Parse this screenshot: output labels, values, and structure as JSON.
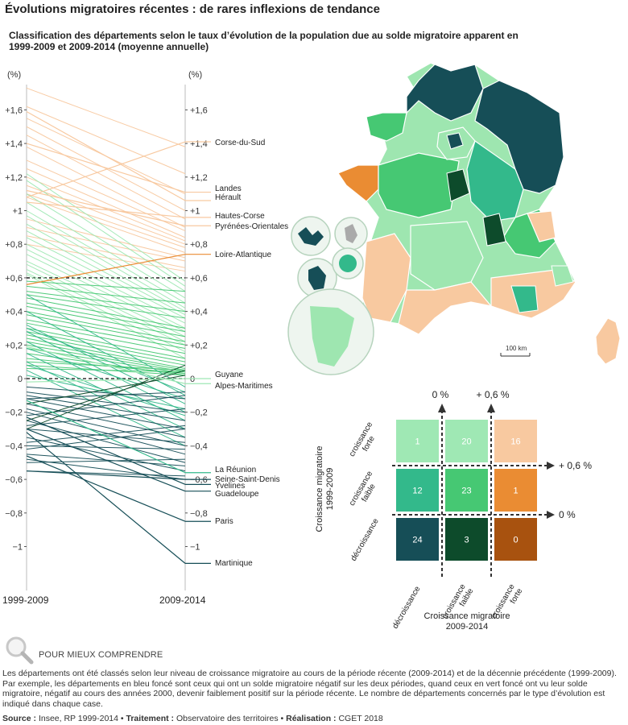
{
  "title": "Évolutions migratoires récentes : de rares inflexions de tendance",
  "subtitle": "Classification des départements selon le taux d’évolution de la population due au solde migratoire apparent en 1999-2009 et 2009-2014 (moyenne annuelle)",
  "colors": {
    "green_light": "#9fe8b4",
    "green_mid": "#46c873",
    "green_dark": "#0d4b2b",
    "blue_dark": "#164e57",
    "teal": "#33b98b",
    "orange_light": "#f8c9a0",
    "orange_mid": "#ea8c33",
    "orange_dark": "#a8520f",
    "threshold": "#333333"
  },
  "chart_data": [
    {
      "type": "slope",
      "unit_label": "(%)",
      "left_label": "1999-2009",
      "right_label": "2009-2014",
      "ylim": [
        -1.2,
        1.8
      ],
      "ticks": [
        {
          "v": 1.6,
          "label": "+1,6"
        },
        {
          "v": 1.4,
          "label": "+1,4"
        },
        {
          "v": 1.2,
          "label": "+1,2"
        },
        {
          "v": 1.0,
          "label": "+1"
        },
        {
          "v": 0.8,
          "label": "+0,8"
        },
        {
          "v": 0.6,
          "label": "+0,6"
        },
        {
          "v": 0.4,
          "label": "+0,4"
        },
        {
          "v": 0.2,
          "label": "+0,2"
        },
        {
          "v": 0.0,
          "label": "0"
        },
        {
          "v": -0.2,
          "label": "−0,2"
        },
        {
          "v": -0.4,
          "label": "−0,4"
        },
        {
          "v": -0.6,
          "label": "−0,6"
        },
        {
          "v": -0.8,
          "label": "−0,8"
        },
        {
          "v": -1.0,
          "label": "−1"
        }
      ],
      "right_tick_label_at_minus_06": "−0,6",
      "thresholds": [
        0.6,
        0.0
      ],
      "labeled": [
        {
          "name": "Corse-du-Sud",
          "y1999": 1.08,
          "y2009": 1.41
        },
        {
          "name": "Landes",
          "y1999": 1.4,
          "y2009": 1.11
        },
        {
          "name": "Hérault",
          "y1999": 1.59,
          "y2009": 1.06
        },
        {
          "name": "Hautes-Corse",
          "y1999": 1.05,
          "y2009": 0.96
        },
        {
          "name": "Pyrénées-Orientales",
          "y1999": 1.12,
          "y2009": 0.91
        },
        {
          "name": "Loire-Atlantique",
          "y1999": 0.56,
          "y2009": 0.74
        },
        {
          "name": "Guyane",
          "y1999": -0.02,
          "y2009": 0.0
        },
        {
          "name": "Alpes-Maritimes",
          "y1999": 0.19,
          "y2009": -0.03
        },
        {
          "name": "La Réunion",
          "y1999": -0.13,
          "y2009": -0.56
        },
        {
          "name": "Seine-Saint-Denis",
          "y1999": -0.55,
          "y2009": -0.6
        },
        {
          "name": "Yvelines",
          "y1999": -0.23,
          "y2009": -0.63
        },
        {
          "name": "Guadeloupe",
          "y1999": -0.3,
          "y2009": -0.67
        },
        {
          "name": "Paris",
          "y1999": -0.46,
          "y2009": -0.85
        },
        {
          "name": "Martinique",
          "y1999": -0.32,
          "y2009": -1.1
        }
      ],
      "label_text": {
        "Corse-du-Sud": "Corse-du-Sud",
        "Landes": "Landes",
        "Hérault": "Hérault",
        "Hautes-Corse": "Hautes-Corse",
        "Pyrénées-Orientales": "Pyrénées-Orientales",
        "Loire-Atlantique": "Loire-Atlantique",
        "Guyane": "Guyane",
        "Alpes-Maritimes": "Alpes-Maritimes",
        "La Réunion": "La Réunion",
        "Seine-Saint-Denis": "Seine-Saint-Denis",
        "Yvelines": "Yvelines",
        "Guadeloupe": "Guadeloupe",
        "Paris": "Paris",
        "Martinique": "Martinique"
      },
      "groups_note": "unlabeled departments drawn by class",
      "unlabeled": {
        "orange_high": [
          [
            1.73,
            1.38
          ],
          [
            1.62,
            1.22
          ],
          [
            1.55,
            1.1
          ],
          [
            1.5,
            1.0
          ],
          [
            1.45,
            0.95
          ],
          [
            1.38,
            0.9
          ],
          [
            1.3,
            0.88
          ],
          [
            1.25,
            0.84
          ],
          [
            1.2,
            0.82
          ],
          [
            1.15,
            0.8
          ],
          [
            1.1,
            0.78
          ],
          [
            1.08,
            0.75
          ],
          [
            0.95,
            0.72
          ],
          [
            0.9,
            0.7
          ],
          [
            0.85,
            0.66
          ],
          [
            0.8,
            0.64
          ]
        ],
        "green_light_up": [
          [
            1.22,
            0.58
          ],
          [
            1.18,
            0.55
          ],
          [
            1.1,
            0.52
          ],
          [
            1.05,
            0.48
          ],
          [
            1.0,
            0.45
          ],
          [
            0.97,
            0.42
          ],
          [
            0.92,
            0.4
          ],
          [
            0.88,
            0.38
          ],
          [
            0.84,
            0.36
          ],
          [
            0.8,
            0.33
          ],
          [
            0.77,
            0.3
          ],
          [
            0.74,
            0.28
          ],
          [
            0.7,
            0.25
          ],
          [
            0.68,
            0.22
          ],
          [
            0.65,
            0.2
          ],
          [
            0.63,
            0.16
          ],
          [
            0.62,
            0.12
          ]
        ],
        "green_mid": [
          [
            0.58,
            0.52
          ],
          [
            0.55,
            0.45
          ],
          [
            0.52,
            0.4
          ],
          [
            0.5,
            0.36
          ],
          [
            0.48,
            0.3
          ],
          [
            0.45,
            0.28
          ],
          [
            0.43,
            0.25
          ],
          [
            0.4,
            0.22
          ],
          [
            0.38,
            0.2
          ],
          [
            0.35,
            0.18
          ],
          [
            0.33,
            0.15
          ],
          [
            0.3,
            0.12
          ],
          [
            0.28,
            0.1
          ],
          [
            0.26,
            0.08
          ],
          [
            0.24,
            0.06
          ],
          [
            0.22,
            0.05
          ],
          [
            0.2,
            0.04
          ],
          [
            0.18,
            0.03
          ],
          [
            0.15,
            0.02
          ],
          [
            0.12,
            0.03
          ],
          [
            0.1,
            0.05
          ],
          [
            0.08,
            0.02
          ],
          [
            0.06,
            0.04
          ]
        ],
        "teal": [
          [
            0.5,
            -0.05
          ],
          [
            0.4,
            -0.1
          ],
          [
            0.32,
            -0.15
          ],
          [
            0.28,
            -0.2
          ],
          [
            0.22,
            -0.25
          ],
          [
            0.15,
            -0.3
          ],
          [
            0.1,
            -0.35
          ],
          [
            0.08,
            -0.22
          ],
          [
            0.05,
            -0.4
          ],
          [
            0.02,
            -0.18
          ],
          [
            0.3,
            -0.08
          ],
          [
            0.18,
            -0.12
          ]
        ],
        "blue_dark": [
          [
            -0.05,
            -0.12
          ],
          [
            -0.08,
            -0.2
          ],
          [
            -0.1,
            -0.25
          ],
          [
            -0.12,
            -0.3
          ],
          [
            -0.15,
            -0.35
          ],
          [
            -0.18,
            -0.4
          ],
          [
            -0.2,
            -0.45
          ],
          [
            -0.25,
            -0.5
          ],
          [
            -0.3,
            -0.38
          ],
          [
            -0.35,
            -0.55
          ],
          [
            -0.4,
            -0.42
          ],
          [
            -0.45,
            -0.52
          ],
          [
            -0.5,
            -0.48
          ],
          [
            -0.55,
            -0.58
          ],
          [
            -0.38,
            -0.28
          ],
          [
            -0.28,
            -0.18
          ],
          [
            -0.22,
            -0.1
          ],
          [
            -0.12,
            -0.08
          ],
          [
            -0.42,
            -0.3
          ],
          [
            -0.48,
            -0.6
          ]
        ],
        "green_dark": [
          [
            -0.3,
            0.08
          ],
          [
            -0.25,
            0.05
          ],
          [
            -0.15,
            0.02
          ]
        ]
      }
    },
    {
      "type": "table",
      "title_y": "Croissance migratoire 1999-2009",
      "title_x": "Croissance migratoire 2009-2014",
      "row_labels": [
        "croissance forte",
        "croissance faible",
        "décroissance"
      ],
      "col_labels": [
        "décroissance",
        "croissance faible",
        "croissance forte"
      ],
      "cells": [
        [
          1,
          20,
          16
        ],
        [
          12,
          23,
          1
        ],
        [
          24,
          3,
          0
        ]
      ],
      "cell_text": [
        [
          "1",
          "20",
          "16"
        ],
        [
          "12",
          "23",
          "1"
        ],
        [
          "24",
          "3",
          "0"
        ]
      ],
      "threshold_labels_top": [
        "0 %",
        "+ 0,6 %"
      ],
      "threshold_labels_right": [
        "+ 0,6 %",
        "0 %"
      ]
    }
  ],
  "map": {
    "scale_label": "100 km"
  },
  "footer": {
    "section_title": "POUR MIEUX COMPRENDRE",
    "explanation": "Les départements ont été classés selon leur niveau de croissance migratoire au cours de la période récente (2009-2014) et de la décennie précédente (1999-2009). Par exemple, les départements en bleu foncé sont ceux qui ont un solde migratoire négatif sur les deux périodes, quand ceux en vert foncé ont vu leur solde migratoire, négatif au cours des années 2000, devenir faiblement positif sur la période récente. Le nombre de départements concernés par le type d’évolution est indiqué dans chaque case.",
    "source_label": "Source :",
    "source_value": "Insee, RP 1999-2014",
    "treatment_label": "Traitement :",
    "treatment_value": "Observatoire des territoires",
    "realisation_label": "Réalisation :",
    "realisation_value": "CGET 2018"
  }
}
